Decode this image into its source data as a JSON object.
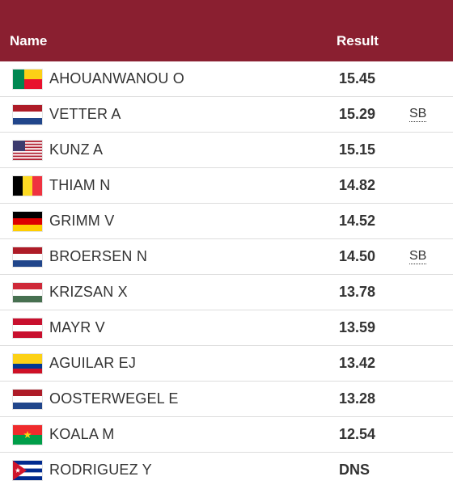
{
  "header": {
    "name": "Name",
    "result": "Result"
  },
  "rows": [
    {
      "name": "AHOUANWANOU O",
      "result": "15.45"
    },
    {
      "name": "VETTER A",
      "result": "15.29",
      "note": "SB"
    },
    {
      "name": "KUNZ A",
      "result": "15.15"
    },
    {
      "name": "THIAM N",
      "result": "14.82"
    },
    {
      "name": "GRIMM V",
      "result": "14.52"
    },
    {
      "name": "BROERSEN N",
      "result": "14.50",
      "note": "SB"
    },
    {
      "name": "KRIZSAN X",
      "result": "13.78"
    },
    {
      "name": "MAYR V",
      "result": "13.59"
    },
    {
      "name": "AGUILAR EJ",
      "result": "13.42"
    },
    {
      "name": "OOSTERWEGEL E",
      "result": "13.28"
    },
    {
      "name": "KOALA M",
      "result": "12.54"
    },
    {
      "name": "RODRIGUEZ Y",
      "result": "DNS"
    }
  ]
}
